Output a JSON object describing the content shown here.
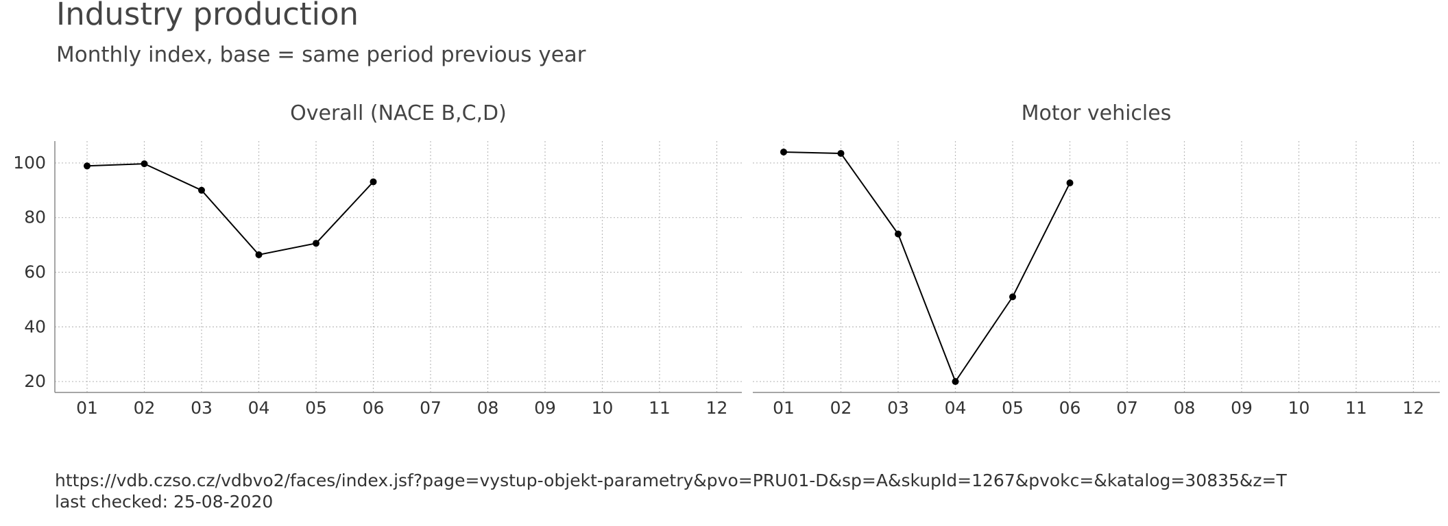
{
  "title": "Industry production",
  "subtitle": "Monthly index, base = same period previous year",
  "caption": {
    "source": "https://vdb.czso.cz/vdbvo2/faces/index.jsf?page=vystup-objekt-parametry&pvo=PRU01-D&sp=A&skupId=1267&pvokc=&katalog=30835&z=T",
    "checked": "last checked: 25-08-2020"
  },
  "colors": {
    "line": "#000000",
    "grid": "#bbbbbb",
    "axis": "#888888",
    "text": "#333333"
  },
  "chart_data": {
    "type": "line",
    "categories": [
      "01",
      "02",
      "03",
      "04",
      "05",
      "06",
      "07",
      "08",
      "09",
      "10",
      "11",
      "12"
    ],
    "y_ticks": [
      20,
      40,
      60,
      80,
      100
    ],
    "ylim": [
      16,
      108
    ],
    "grid": true,
    "grid_style": "dotted",
    "panels": [
      {
        "title": "Overall (NACE B,C,D)",
        "values": [
          98.9,
          99.7,
          90.0,
          66.4,
          70.6,
          93.1
        ]
      },
      {
        "title": "Motor vehicles",
        "values": [
          104.0,
          103.5,
          74.0,
          20.0,
          51.0,
          92.7
        ]
      }
    ]
  }
}
